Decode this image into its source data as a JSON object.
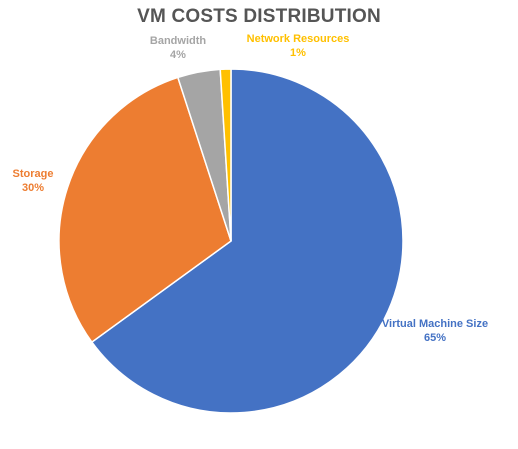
{
  "chart_data": {
    "type": "pie",
    "title": "VM COSTS DISTRIBUTION",
    "slices": [
      {
        "label": "Virtual Machine Size",
        "value": 65,
        "display": "65%",
        "color": "#4472C4"
      },
      {
        "label": "Storage",
        "value": 30,
        "display": "30%",
        "color": "#ED7D31"
      },
      {
        "label": "Bandwidth",
        "value": 4,
        "display": "4%",
        "color": "#A5A5A5"
      },
      {
        "label": "Network Resources",
        "value": 1,
        "display": "1%",
        "color": "#FFC000"
      }
    ],
    "legend": "none"
  }
}
